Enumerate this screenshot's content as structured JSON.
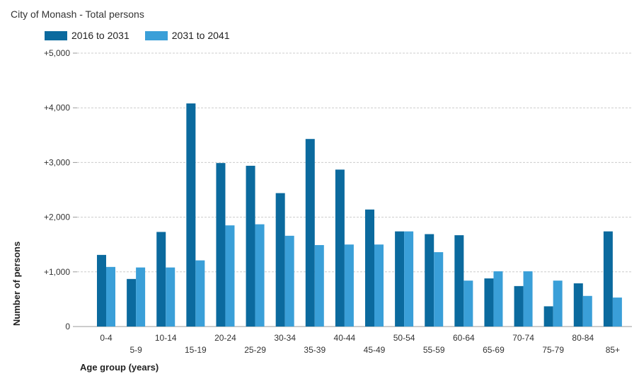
{
  "subtitle": "City of Monash - Total persons",
  "colors": {
    "series1": "#0b6a9e",
    "series2": "#3a9fd8",
    "grid": "#cccccc",
    "axis": "#999999"
  },
  "chart_data": {
    "type": "bar",
    "xlabel": "Age group (years)",
    "ylabel": "Number of persons",
    "ylim": [
      0,
      5000
    ],
    "yticks": [
      {
        "value": 0,
        "label": "0"
      },
      {
        "value": 1000,
        "label": "+1,000"
      },
      {
        "value": 2000,
        "label": "+2,000"
      },
      {
        "value": 3000,
        "label": "+3,000"
      },
      {
        "value": 4000,
        "label": "+4,000"
      },
      {
        "value": 5000,
        "label": "+5,000"
      }
    ],
    "grid": true,
    "legend": "top-left",
    "categories": [
      "0-4",
      "5-9",
      "10-14",
      "15-19",
      "20-24",
      "25-29",
      "30-34",
      "35-39",
      "40-44",
      "45-49",
      "50-54",
      "55-59",
      "60-64",
      "65-69",
      "70-74",
      "75-79",
      "80-84",
      "85+"
    ],
    "series": [
      {
        "name": "2016 to 2031",
        "values": [
          1310,
          870,
          1730,
          4080,
          2990,
          2940,
          2440,
          3430,
          2870,
          2140,
          1740,
          1690,
          1670,
          880,
          740,
          370,
          790,
          1740
        ]
      },
      {
        "name": "2031 to 2041",
        "values": [
          1090,
          1080,
          1080,
          1210,
          1850,
          1870,
          1660,
          1490,
          1500,
          1500,
          1740,
          1360,
          840,
          1010,
          1010,
          840,
          560,
          530
        ]
      }
    ]
  }
}
